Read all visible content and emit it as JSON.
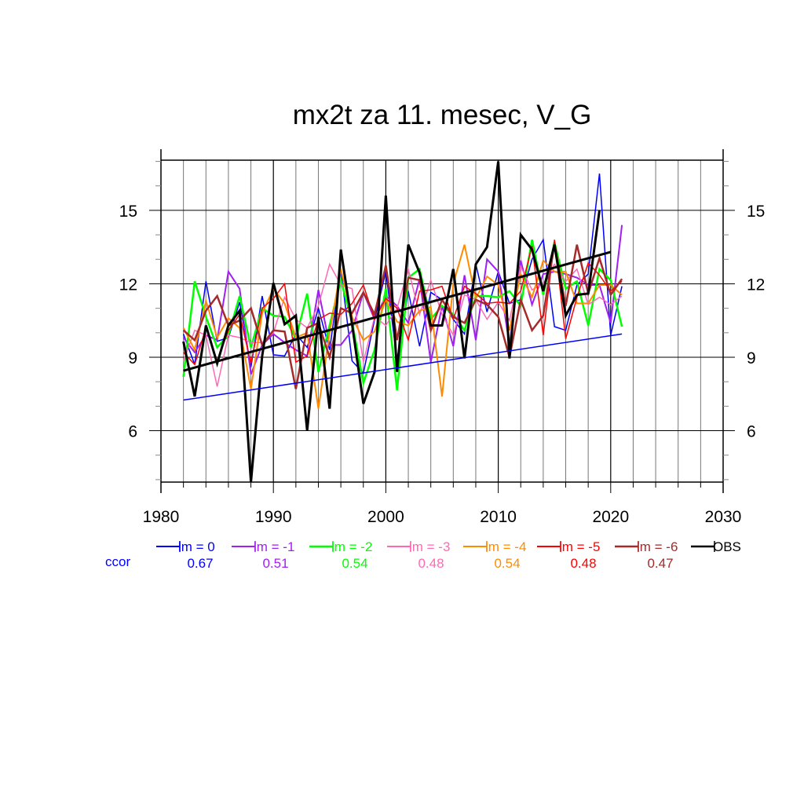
{
  "chart_data": {
    "type": "line",
    "title": "mx2t za 11. mesec, V_G",
    "xlabel": "",
    "ylabel": "",
    "xlim": [
      1980,
      2030
    ],
    "ylim": [
      3.9,
      17.05
    ],
    "grid": true,
    "x_ticks": [
      1980,
      1990,
      2000,
      2010,
      2020,
      2030
    ],
    "x_tick_labels": [
      "1980",
      "1990",
      "2000",
      "2010",
      "2020",
      "2030"
    ],
    "y_ticks": [
      6,
      9,
      12,
      15
    ],
    "y_tick_labels": [
      "6",
      "9",
      "12",
      "15"
    ],
    "x": [
      1982,
      1983,
      1984,
      1985,
      1986,
      1987,
      1988,
      1989,
      1990,
      1991,
      1992,
      1993,
      1994,
      1995,
      1996,
      1997,
      1998,
      1999,
      2000,
      2001,
      2002,
      2003,
      2004,
      2005,
      2006,
      2007,
      2008,
      2009,
      2010,
      2011,
      2012,
      2013,
      2014,
      2015,
      2016,
      2017,
      2018,
      2019,
      2020,
      2021
    ],
    "series": [
      {
        "name": "lm = 0",
        "color": "#0000ff",
        "width": 1.5,
        "ccor": "0.67",
        "values": [
          9.95,
          8.7,
          12.1,
          9.65,
          9.8,
          11.25,
          8.6,
          11.5,
          9.1,
          9.05,
          9.95,
          9.4,
          11.0,
          9.3,
          12.6,
          8.85,
          8.35,
          10.55,
          12.5,
          8.9,
          11.7,
          9.45,
          11.65,
          11.35,
          10.55,
          9.95,
          12.8,
          10.85,
          12.5,
          11.2,
          11.35,
          13.0,
          13.8,
          10.25,
          10.1,
          11.95,
          12.4,
          16.5,
          9.9,
          11.9
        ]
      },
      {
        "name": "lm = -1",
        "color": "#a020f0",
        "width": 2,
        "ccor": "0.51",
        "values": [
          9.8,
          9.2,
          9.9,
          9.7,
          12.5,
          11.8,
          8.3,
          9.5,
          9.95,
          9.6,
          9.3,
          9.05,
          11.75,
          9.5,
          9.5,
          10.1,
          11.65,
          10.55,
          11.5,
          11.1,
          10.4,
          12.2,
          8.8,
          11.1,
          9.45,
          12.35,
          9.7,
          13.0,
          12.5,
          9.5,
          12.95,
          11.15,
          12.4,
          12.5,
          12.4,
          12.25,
          11.95,
          11.95,
          10.4,
          14.4
        ]
      },
      {
        "name": "lm = -2",
        "color": "#00ff00",
        "width": 2.5,
        "ccor": "0.54",
        "values": [
          8.2,
          12.1,
          10.65,
          9.4,
          9.9,
          11.5,
          9.4,
          11.0,
          10.7,
          10.65,
          9.75,
          11.6,
          8.4,
          10.3,
          12.15,
          10.45,
          7.95,
          9.3,
          11.8,
          7.65,
          12.25,
          12.6,
          10.55,
          11.1,
          10.75,
          10.1,
          11.5,
          11.5,
          11.45,
          11.7,
          11.1,
          13.8,
          11.55,
          13.7,
          11.8,
          12.1,
          10.3,
          12.6,
          12.15,
          10.25
        ]
      },
      {
        "name": "lm = -3",
        "color": "#ff69b4",
        "width": 1.5,
        "ccor": "0.48",
        "values": [
          8.85,
          10.1,
          9.9,
          7.8,
          9.9,
          9.8,
          9.6,
          9.6,
          10.0,
          11.45,
          10.55,
          10.2,
          11.1,
          12.8,
          11.95,
          11.8,
          8.8,
          10.65,
          10.3,
          11.0,
          12.6,
          10.75,
          12.15,
          10.75,
          9.9,
          11.55,
          11.35,
          10.55,
          11.25,
          10.5,
          12.7,
          11.75,
          12.0,
          12.8,
          12.1,
          12.6,
          11.15,
          11.45,
          11.15,
          11.5
        ]
      },
      {
        "name": "lm = -4",
        "color": "#ff8c00",
        "width": 2,
        "ccor": "0.54",
        "values": [
          10.2,
          9.3,
          11.3,
          9.8,
          10.6,
          10.2,
          7.7,
          10.8,
          11.8,
          11.2,
          9.8,
          10.0,
          6.9,
          10.0,
          12.6,
          10.65,
          9.7,
          10.05,
          11.35,
          10.45,
          10.3,
          10.9,
          11.05,
          7.4,
          12.0,
          13.6,
          11.4,
          12.3,
          11.95,
          10.1,
          12.4,
          11.45,
          12.95,
          12.5,
          12.5,
          11.2,
          11.2,
          11.95,
          11.95,
          11.55
        ]
      },
      {
        "name": "lm = -5",
        "color": "#ff0000",
        "width": 1.5,
        "ccor": "0.48",
        "values": [
          9.2,
          8.7,
          10.2,
          8.85,
          10.1,
          10.75,
          8.75,
          11.0,
          11.4,
          12.0,
          8.8,
          9.05,
          10.55,
          10.8,
          10.75,
          11.2,
          11.95,
          10.55,
          11.4,
          11.0,
          9.7,
          11.7,
          11.75,
          11.9,
          10.55,
          11.9,
          11.6,
          11.2,
          11.25,
          11.2,
          11.7,
          13.55,
          9.9,
          13.8,
          9.75,
          11.45,
          12.85,
          12.35,
          11.7,
          12.1
        ]
      },
      {
        "name": "lm = -6",
        "color": "#a52a2a",
        "width": 2.5,
        "ccor": "0.47",
        "values": [
          10.1,
          9.7,
          10.9,
          11.5,
          10.3,
          10.5,
          11.0,
          9.5,
          10.1,
          10.05,
          7.7,
          10.2,
          10.4,
          9.0,
          11.0,
          10.8,
          11.65,
          10.75,
          12.75,
          9.7,
          12.25,
          12.15,
          10.1,
          11.35,
          10.65,
          10.4,
          11.35,
          11.15,
          10.65,
          9.0,
          11.35,
          10.1,
          10.7,
          13.65,
          11.1,
          13.6,
          11.6,
          13.05,
          11.55,
          12.2
        ]
      },
      {
        "name": "OBS",
        "color": "#000000",
        "width": 3,
        "ccor": "",
        "values": [
          9.64,
          7.4,
          10.3,
          8.75,
          10.3,
          10.9,
          3.9,
          9.05,
          12.03,
          10.35,
          10.7,
          6.0,
          10.65,
          6.9,
          13.4,
          10.35,
          7.1,
          8.4,
          15.6,
          8.4,
          13.6,
          12.45,
          10.3,
          10.3,
          12.6,
          8.95,
          12.8,
          13.5,
          17.0,
          8.95,
          14.0,
          13.4,
          11.7,
          13.6,
          10.7,
          11.55,
          11.6,
          15.0,
          null,
          null
        ]
      }
    ],
    "trend_lines": [
      {
        "name": "OBS trend",
        "color": "#000000",
        "width": 3,
        "x": [
          1982,
          2020
        ],
        "y": [
          8.45,
          13.3
        ]
      },
      {
        "name": "lm = 0 trend",
        "color": "#0000ff",
        "width": 1.5,
        "x": [
          1982,
          2021
        ],
        "y": [
          7.25,
          9.95
        ]
      }
    ],
    "legend": {
      "placement": "bottom",
      "ccor_label": "ccor"
    }
  }
}
